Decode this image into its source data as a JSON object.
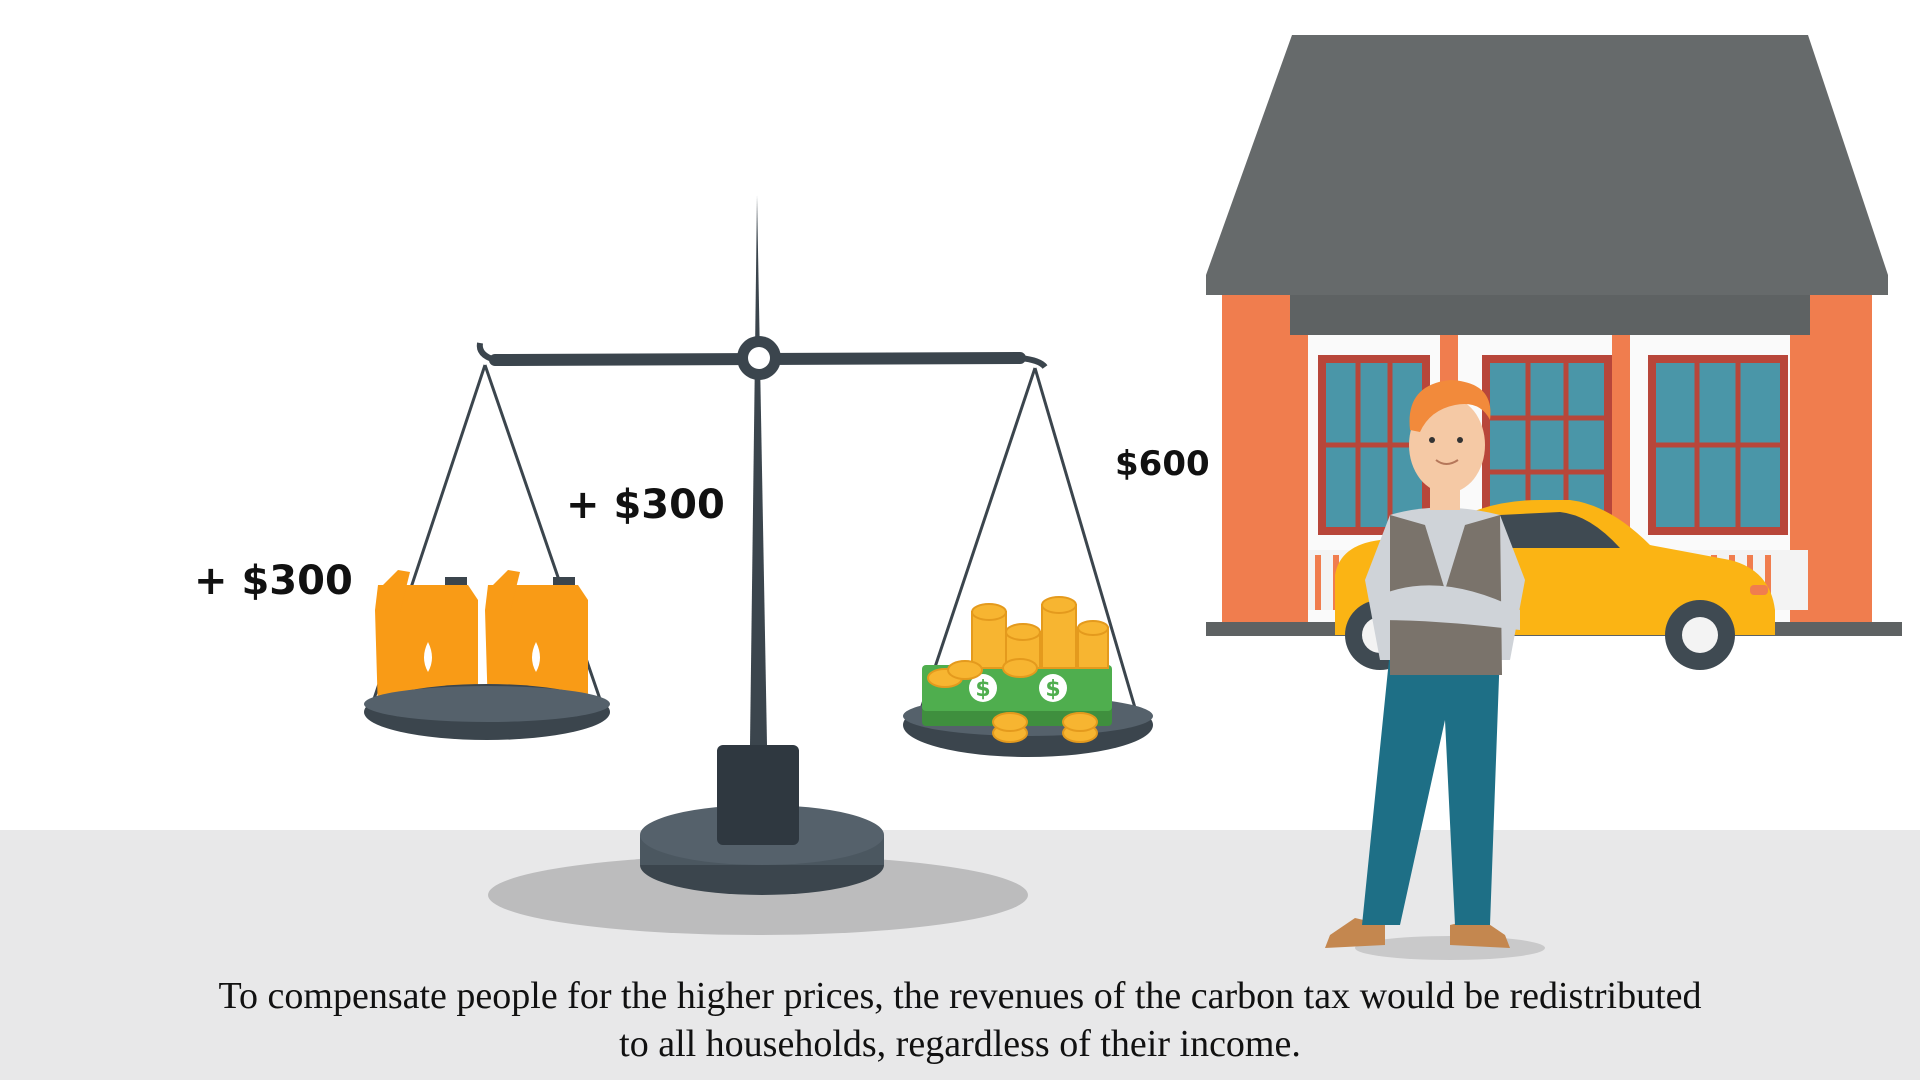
{
  "labels": {
    "left_pan_amount": "+ $300",
    "middle_amount": "+ $300",
    "household_amount": "$600"
  },
  "caption": {
    "line1": "To compensate people for the higher prices, the revenues of the carbon tax would be redistributed",
    "line2": "to all households, regardless of their income."
  },
  "colors": {
    "background": "#ffffff",
    "ground": "#e8e8e9",
    "scale_dark": "#3b454d",
    "roof": "#666a6b",
    "house_orange": "#f07d4e",
    "window_teal": "#4a96a8",
    "window_frame": "#b8463a",
    "car_yellow": "#fbb414",
    "canister_orange": "#f99b16",
    "coin_gold": "#f7b531",
    "cash_green": "#4fae4e",
    "vest_gray": "#7a736b",
    "pants_teal": "#1e6f86",
    "hair_orange": "#f28a3b"
  }
}
